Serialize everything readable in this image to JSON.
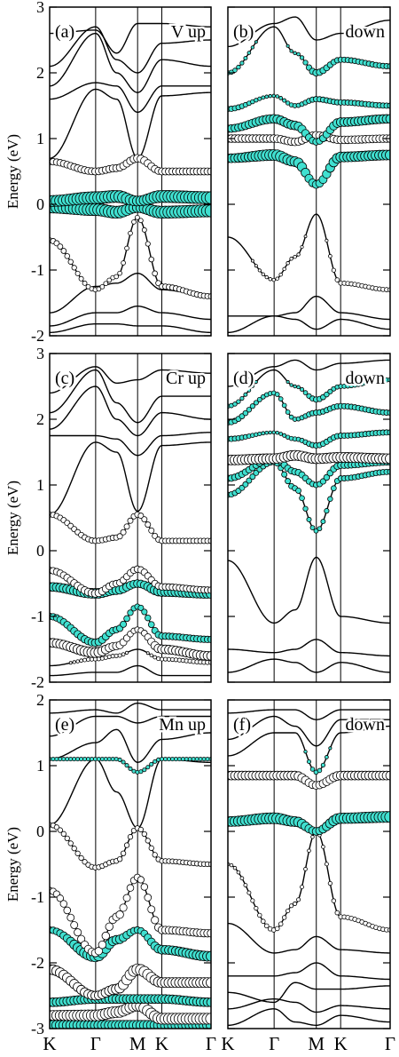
{
  "chart_data": [
    {
      "type": "scatter",
      "panel_label": "(a)",
      "element": "V",
      "spin": "up",
      "ylabel": "Energy (eV)",
      "ylim": [
        -2,
        3
      ],
      "yticks": [
        -2,
        -1,
        0,
        1,
        2,
        3
      ],
      "kpath": [
        "K",
        "Γ",
        "M",
        "K",
        "Γ"
      ],
      "bands": [
        [
          -1.95,
          -1.82,
          -1.82,
          -1.85,
          -1.85,
          -1.95
        ],
        [
          -1.85,
          -1.65,
          -1.65,
          -1.55,
          -1.65,
          -1.75
        ],
        [
          -1.65,
          -1.25,
          -1.2,
          -1.05,
          -1.3,
          -1.4
        ],
        [
          -0.55,
          -1.3,
          -1.1,
          -0.2,
          -1.25,
          -1.4
        ],
        [
          -0.05,
          -0.08,
          -0.12,
          -0.05,
          -0.12,
          -0.1
        ],
        [
          0.05,
          0.1,
          0.12,
          0.05,
          0.12,
          0.1
        ],
        [
          0.65,
          0.5,
          0.55,
          0.7,
          0.5,
          0.5
        ],
        [
          0.7,
          1.75,
          1.6,
          0.7,
          1.65,
          1.7
        ],
        [
          1.6,
          1.85,
          1.8,
          1.4,
          1.8,
          1.8
        ],
        [
          1.8,
          2.6,
          2.0,
          1.7,
          2.2,
          2.1
        ],
        [
          2.1,
          2.7,
          2.2,
          2.0,
          2.45,
          2.5
        ],
        [
          2.6,
          2.65,
          2.3,
          2.75,
          2.75,
          2.7
        ]
      ],
      "weights": [
        [
          0,
          0,
          0,
          0,
          0,
          0
        ],
        [
          0,
          0,
          0,
          0,
          0,
          0
        ],
        [
          0,
          0,
          0,
          0,
          0,
          0
        ],
        [
          0.3,
          0.2,
          0.2,
          0.2,
          0.3,
          0.3
        ],
        [
          0.8,
          0.9,
          0.9,
          0.7,
          0.9,
          0.9
        ],
        [
          0.8,
          0.9,
          0.9,
          0.7,
          0.9,
          0.9
        ],
        [
          0.4,
          0.45,
          0.45,
          0.5,
          0.45,
          0.45
        ],
        [
          0,
          0,
          0,
          0,
          0,
          0
        ],
        [
          0,
          0,
          0,
          0,
          0,
          0
        ],
        [
          0,
          0,
          0,
          0,
          0,
          0
        ],
        [
          0,
          0,
          0,
          0,
          0,
          0
        ],
        [
          0,
          0,
          0,
          0,
          0,
          0
        ]
      ],
      "cyan": [
        0,
        0,
        0,
        0,
        1,
        1,
        0,
        0,
        0,
        0,
        0,
        0
      ]
    },
    {
      "type": "scatter",
      "panel_label": "(b)",
      "spin": "down",
      "ylim": [
        -2,
        3
      ],
      "kpath": [
        "K",
        "Γ",
        "M",
        "K",
        "Γ"
      ],
      "bands": [
        [
          -1.95,
          -1.7,
          -1.75,
          -1.9,
          -1.75,
          -1.9
        ],
        [
          -1.7,
          -1.7,
          -1.65,
          -1.4,
          -1.65,
          -1.75
        ],
        [
          -0.5,
          -1.15,
          -0.8,
          -0.15,
          -1.2,
          -1.3
        ],
        [
          0.7,
          0.75,
          0.65,
          0.3,
          0.72,
          0.75
        ],
        [
          1.0,
          1.0,
          0.95,
          1.05,
          0.98,
          1.0
        ],
        [
          1.15,
          1.3,
          1.2,
          0.95,
          1.25,
          1.3
        ],
        [
          1.45,
          1.65,
          1.5,
          1.6,
          1.55,
          1.5
        ],
        [
          2.0,
          2.7,
          2.3,
          2.0,
          2.2,
          2.1
        ],
        [
          2.4,
          2.75,
          2.85,
          2.5,
          2.6,
          2.8
        ]
      ],
      "weights": [
        [
          0,
          0,
          0,
          0,
          0,
          0
        ],
        [
          0,
          0,
          0,
          0,
          0,
          0
        ],
        [
          0,
          0.1,
          0.1,
          0,
          0.2,
          0.2
        ],
        [
          0.6,
          0.8,
          0.7,
          0.5,
          0.7,
          0.7
        ],
        [
          0.5,
          0.5,
          0.5,
          0.5,
          0.5,
          0.5
        ],
        [
          0.5,
          0.6,
          0.6,
          0.4,
          0.6,
          0.6
        ],
        [
          0.3,
          0.1,
          0.2,
          0.3,
          0.3,
          0.3
        ],
        [
          0.2,
          0,
          0.1,
          0.4,
          0.3,
          0.3
        ],
        [
          0,
          0,
          0,
          0,
          0,
          0
        ]
      ],
      "cyan": [
        0,
        0,
        0,
        1,
        0,
        1,
        1,
        1,
        0
      ]
    },
    {
      "type": "scatter",
      "panel_label": "(c)",
      "element": "Cr",
      "spin": "up",
      "ylabel": "Energy (eV)",
      "ylim": [
        -2,
        3
      ],
      "yticks": [
        -2,
        -1,
        0,
        1,
        2,
        3
      ],
      "kpath": [
        "K",
        "Γ",
        "M",
        "K",
        "Γ"
      ],
      "bands": [
        [
          -1.9,
          -1.85,
          -1.85,
          -1.75,
          -1.9,
          -1.9
        ],
        [
          -1.75,
          -1.65,
          -1.6,
          -1.5,
          -1.65,
          -1.7
        ],
        [
          -1.4,
          -1.55,
          -1.45,
          -1.2,
          -1.5,
          -1.6
        ],
        [
          -1.0,
          -1.4,
          -1.2,
          -0.85,
          -1.3,
          -1.35
        ],
        [
          -0.55,
          -0.65,
          -0.6,
          -0.5,
          -0.62,
          -0.65
        ],
        [
          -0.3,
          -0.65,
          -0.5,
          -0.28,
          -0.55,
          -0.6
        ],
        [
          0.55,
          0.15,
          0.2,
          0.55,
          0.15,
          0.15
        ],
        [
          0.55,
          1.65,
          1.5,
          0.6,
          1.6,
          1.65
        ],
        [
          1.75,
          1.75,
          1.7,
          1.45,
          1.75,
          1.8
        ],
        [
          1.85,
          2.5,
          2.0,
          1.75,
          2.1,
          2.0
        ],
        [
          2.1,
          2.75,
          2.25,
          1.95,
          2.35,
          2.35
        ],
        [
          2.4,
          2.8,
          2.55,
          2.6,
          2.75,
          2.7
        ]
      ],
      "weights": [
        [
          0,
          0,
          0,
          0,
          0,
          0
        ],
        [
          0,
          0.15,
          0.15,
          0,
          0.15,
          0.2
        ],
        [
          0.6,
          0.7,
          0.5,
          0.3,
          0.6,
          0.6
        ],
        [
          0.4,
          0.5,
          0.4,
          0.3,
          0.4,
          0.4
        ],
        [
          0.6,
          0.7,
          0.6,
          0.5,
          0.7,
          0.7
        ],
        [
          0.4,
          0.5,
          0.4,
          0.4,
          0.4,
          0.4
        ],
        [
          0.3,
          0.3,
          0.3,
          0.3,
          0.3,
          0.3
        ],
        [
          0,
          0,
          0,
          0,
          0,
          0
        ],
        [
          0,
          0,
          0,
          0,
          0,
          0
        ],
        [
          0,
          0,
          0,
          0,
          0,
          0
        ],
        [
          0,
          0,
          0,
          0,
          0,
          0
        ],
        [
          0,
          0,
          0,
          0,
          0,
          0
        ]
      ],
      "cyan": [
        0,
        0,
        0,
        1,
        1,
        0,
        0,
        0,
        0,
        0,
        0,
        0
      ]
    },
    {
      "type": "scatter",
      "panel_label": "(d)",
      "spin": "down",
      "ylim": [
        -2,
        3
      ],
      "kpath": [
        "K",
        "Γ",
        "M",
        "K",
        "Γ"
      ],
      "bands": [
        [
          -1.85,
          -1.65,
          -1.7,
          -1.85,
          -1.7,
          -1.85
        ],
        [
          -1.5,
          -1.55,
          -1.5,
          -1.35,
          -1.55,
          -1.6
        ],
        [
          -0.15,
          -1.1,
          -0.9,
          -0.1,
          -1.0,
          -1.1
        ],
        [
          0.85,
          1.35,
          0.95,
          0.3,
          1.1,
          1.2
        ],
        [
          1.1,
          1.4,
          1.2,
          1.0,
          1.3,
          1.35
        ],
        [
          1.38,
          1.4,
          1.45,
          1.4,
          1.42,
          1.4
        ],
        [
          1.7,
          1.8,
          1.7,
          1.6,
          1.75,
          1.8
        ],
        [
          1.95,
          2.4,
          2.0,
          2.1,
          2.2,
          2.1
        ],
        [
          2.2,
          2.75,
          2.5,
          2.3,
          2.5,
          2.6
        ],
        [
          2.5,
          2.8,
          2.9,
          2.75,
          2.85,
          2.9
        ]
      ],
      "weights": [
        [
          0,
          0,
          0,
          0,
          0,
          0
        ],
        [
          0,
          0,
          0,
          0,
          0,
          0
        ],
        [
          0,
          0,
          0,
          0,
          0,
          0
        ],
        [
          0.3,
          0.3,
          0.3,
          0.2,
          0.3,
          0.3
        ],
        [
          0.4,
          0.4,
          0.4,
          0.3,
          0.4,
          0.4
        ],
        [
          0.7,
          0.7,
          0.7,
          0.7,
          0.7,
          0.7
        ],
        [
          0.3,
          0.1,
          0.2,
          0.3,
          0.3,
          0.3
        ],
        [
          0.3,
          0.2,
          0.2,
          0.3,
          0.3,
          0.3
        ],
        [
          0.2,
          0,
          0.1,
          0.3,
          0.2,
          0.2
        ],
        [
          0,
          0,
          0,
          0,
          0,
          0
        ]
      ],
      "cyan": [
        0,
        0,
        0,
        1,
        1,
        0,
        1,
        1,
        1,
        0
      ]
    },
    {
      "type": "scatter",
      "panel_label": "(e)",
      "element": "Mn",
      "spin": "up",
      "ylabel": "Energy (eV)",
      "ylim": [
        -3,
        2
      ],
      "yticks": [
        -3,
        -2,
        -1,
        0,
        1,
        2
      ],
      "kpath": [
        "K",
        "Γ",
        "M",
        "K",
        "Γ"
      ],
      "bands": [
        [
          -2.95,
          -2.95,
          -2.95,
          -2.95,
          -2.95,
          -2.95
        ],
        [
          -2.8,
          -2.8,
          -2.75,
          -2.65,
          -2.85,
          -2.85
        ],
        [
          -2.6,
          -2.55,
          -2.55,
          -2.55,
          -2.55,
          -2.6
        ],
        [
          -2.1,
          -2.5,
          -2.4,
          -2.1,
          -2.3,
          -2.3
        ],
        [
          -1.5,
          -1.9,
          -1.65,
          -1.5,
          -1.8,
          -1.9
        ],
        [
          -0.9,
          -1.85,
          -1.3,
          -0.7,
          -1.5,
          -1.55
        ],
        [
          0.1,
          -0.55,
          -0.45,
          0.05,
          -0.45,
          -0.5
        ],
        [
          0.1,
          1.1,
          0.6,
          0.05,
          1.1,
          1.05
        ],
        [
          1.1,
          1.1,
          1.1,
          0.9,
          1.1,
          1.1
        ],
        [
          1.1,
          1.35,
          1.55,
          1.05,
          1.4,
          1.5
        ],
        [
          1.45,
          1.75,
          1.75,
          1.65,
          1.75,
          1.75
        ],
        [
          1.8,
          1.85,
          1.8,
          1.95,
          1.85,
          1.85
        ]
      ],
      "weights": [
        [
          0.7,
          0.7,
          0.7,
          0.7,
          0.7,
          0.7
        ],
        [
          0.7,
          0.8,
          0.8,
          0.8,
          0.8,
          0.8
        ],
        [
          0.6,
          0.6,
          0.6,
          0.6,
          0.6,
          0.6
        ],
        [
          0.7,
          0.6,
          0.7,
          0.8,
          0.7,
          0.7
        ],
        [
          0.4,
          0.8,
          0.6,
          0.4,
          0.6,
          0.7
        ],
        [
          0.4,
          0.5,
          0.5,
          0.4,
          0.5,
          0.5
        ],
        [
          0.25,
          0.25,
          0.25,
          0.25,
          0.25,
          0.25
        ],
        [
          0,
          0,
          0,
          0,
          0,
          0
        ],
        [
          0.15,
          0.15,
          0.15,
          0.15,
          0.15,
          0.15
        ],
        [
          0,
          0,
          0,
          0,
          0,
          0
        ],
        [
          0,
          0,
          0,
          0,
          0,
          0
        ],
        [
          0,
          0,
          0,
          0,
          0,
          0
        ]
      ],
      "cyan": [
        1,
        0,
        1,
        0,
        1,
        0,
        0,
        0,
        1,
        0,
        0,
        0
      ]
    },
    {
      "type": "scatter",
      "panel_label": "(f)",
      "spin": "down",
      "ylim": [
        -3,
        2
      ],
      "kpath": [
        "K",
        "Γ",
        "M",
        "K",
        "Γ"
      ],
      "bands": [
        [
          -2.95,
          -2.7,
          -2.9,
          -2.95,
          -2.8,
          -2.9
        ],
        [
          -2.7,
          -2.55,
          -2.6,
          -2.75,
          -2.65,
          -2.7
        ],
        [
          -2.45,
          -2.6,
          -2.3,
          -2.4,
          -2.4,
          -2.35
        ],
        [
          -2.2,
          -2.2,
          -2.15,
          -2.0,
          -2.2,
          -2.25
        ],
        [
          -1.4,
          -1.85,
          -1.8,
          -1.6,
          -1.8,
          -1.85
        ],
        [
          -0.5,
          -1.5,
          -1.1,
          0.0,
          -1.3,
          -1.5
        ],
        [
          0.15,
          0.2,
          0.15,
          0.0,
          0.2,
          0.22
        ],
        [
          0.85,
          0.85,
          0.85,
          0.7,
          0.85,
          0.85
        ],
        [
          1.15,
          1.5,
          1.5,
          0.9,
          1.5,
          1.6
        ],
        [
          1.4,
          1.75,
          1.6,
          1.3,
          1.7,
          1.7
        ],
        [
          1.8,
          1.85,
          1.85,
          1.7,
          1.85,
          1.85
        ]
      ],
      "weights": [
        [
          0,
          0,
          0,
          0,
          0,
          0
        ],
        [
          0,
          0,
          0,
          0,
          0,
          0
        ],
        [
          0,
          0,
          0,
          0,
          0,
          0
        ],
        [
          0,
          0,
          0,
          0,
          0,
          0
        ],
        [
          0,
          0,
          0,
          0,
          0,
          0
        ],
        [
          0.1,
          0.2,
          0.15,
          0.1,
          0.2,
          0.2
        ],
        [
          0.7,
          0.8,
          0.7,
          0.5,
          0.75,
          0.8
        ],
        [
          0.6,
          0.6,
          0.6,
          0.5,
          0.6,
          0.6
        ],
        [
          0,
          0,
          0,
          0.2,
          0,
          0
        ],
        [
          0,
          0,
          0,
          0,
          0,
          0
        ],
        [
          0,
          0,
          0,
          0,
          0,
          0
        ]
      ],
      "cyan": [
        0,
        0,
        0,
        0,
        0,
        0,
        1,
        0,
        1,
        0,
        0
      ]
    }
  ],
  "style": {
    "cyan_fill": "#40e0d0",
    "white_fill": "#ffffff",
    "line_color": "#000000"
  }
}
